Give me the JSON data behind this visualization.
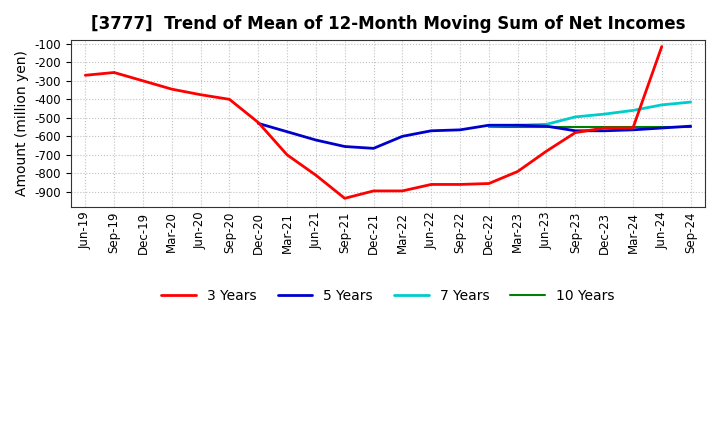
{
  "title": "[3777]  Trend of Mean of 12-Month Moving Sum of Net Incomes",
  "ylabel": "Amount (million yen)",
  "x_labels": [
    "Jun-19",
    "Sep-19",
    "Dec-19",
    "Mar-20",
    "Jun-20",
    "Sep-20",
    "Dec-20",
    "Mar-21",
    "Jun-21",
    "Sep-21",
    "Dec-21",
    "Mar-22",
    "Jun-22",
    "Sep-22",
    "Dec-22",
    "Mar-23",
    "Jun-23",
    "Sep-23",
    "Dec-23",
    "Mar-24",
    "Jun-24",
    "Sep-24"
  ],
  "ylim": [
    -980,
    -80
  ],
  "yticks": [
    -100,
    -200,
    -300,
    -400,
    -500,
    -600,
    -700,
    -800,
    -900
  ],
  "series": {
    "3 Years": {
      "color": "#ff0000",
      "x_indices": [
        0,
        1,
        2,
        3,
        4,
        5,
        6,
        7,
        8,
        9,
        10,
        11,
        12,
        13,
        14,
        15,
        16,
        17,
        18,
        19,
        20
      ],
      "y": [
        -270,
        -255,
        -300,
        -345,
        -375,
        -400,
        -525,
        -700,
        -810,
        -935,
        -895,
        -895,
        -860,
        -860,
        -855,
        -790,
        -680,
        -580,
        -555,
        -555,
        -115
      ]
    },
    "5 Years": {
      "color": "#0000cc",
      "x_indices": [
        6,
        7,
        8,
        9,
        10,
        11,
        12,
        13,
        14,
        15,
        16,
        17,
        18,
        19,
        20,
        21
      ],
      "y": [
        -530,
        -575,
        -620,
        -655,
        -665,
        -600,
        -570,
        -565,
        -540,
        -540,
        -545,
        -570,
        -570,
        -565,
        -555,
        -545
      ]
    },
    "7 Years": {
      "color": "#00cccc",
      "x_indices": [
        14,
        15,
        16,
        17,
        18,
        19,
        20,
        21
      ],
      "y": [
        -545,
        -540,
        -535,
        -495,
        -480,
        -460,
        -430,
        -415
      ]
    },
    "10 Years": {
      "color": "#008000",
      "x_indices": [
        14,
        15,
        16,
        17,
        18,
        19,
        20,
        21
      ],
      "y": [
        -548,
        -548,
        -548,
        -548,
        -548,
        -548,
        -548,
        -548
      ]
    }
  },
  "legend_labels": [
    "3 Years",
    "5 Years",
    "7 Years",
    "10 Years"
  ],
  "background_color": "#ffffff",
  "grid_color": "#bbbbbb",
  "title_fontsize": 12,
  "label_fontsize": 10,
  "tick_fontsize": 8.5
}
